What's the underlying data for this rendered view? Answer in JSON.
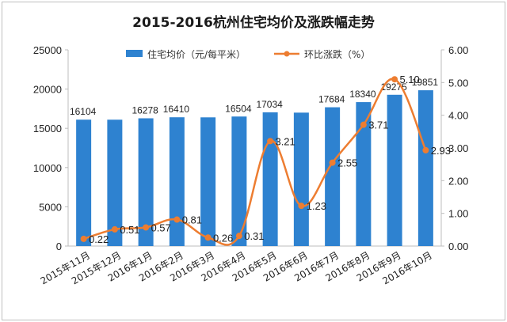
{
  "chart_data": {
    "type": "bar",
    "title": "2015-2016杭州住宅均价及涨跌幅走势",
    "categories": [
      "2015年11月",
      "2015年12月",
      "2016年1月",
      "2016年2月",
      "2016年3月",
      "2016年4月",
      "2016年5月",
      "2016年6月",
      "2016年7月",
      "2016年8月",
      "2016年9月",
      "2016年10月"
    ],
    "series": [
      {
        "name": "住宅均价（元/每平米）",
        "type": "bar",
        "axis": "left",
        "color": "#2e82d0",
        "values": [
          16104,
          16100,
          16278,
          16410,
          16400,
          16504,
          17034,
          17000,
          17684,
          18340,
          19275,
          19851
        ],
        "labels": [
          "16104",
          "",
          "16278",
          "16410",
          "",
          "16504",
          "17034",
          "",
          "17684",
          "18340",
          "19275",
          "19851"
        ]
      },
      {
        "name": "环比涨跌（%）",
        "type": "line",
        "axis": "right",
        "color": "#ed7d31",
        "values": [
          0.22,
          0.51,
          0.57,
          0.81,
          0.26,
          0.31,
          3.21,
          1.23,
          2.55,
          3.71,
          5.1,
          2.93
        ],
        "labels": [
          "0.22",
          "0.51",
          "0.57",
          "0.81",
          "0.26",
          "0.31",
          "3.21",
          "1.23",
          "2.55",
          "3.71",
          "5.10",
          "2.93"
        ]
      }
    ],
    "y_left": {
      "min": 0,
      "max": 25000,
      "ticks": [
        "0",
        "5000",
        "10000",
        "15000",
        "20000",
        "25000"
      ]
    },
    "y_right": {
      "min": 0,
      "max": 6,
      "ticks": [
        "0.00",
        "1.00",
        "2.00",
        "3.00",
        "4.00",
        "5.00",
        "6.00"
      ]
    },
    "legend_position": "top",
    "grid": false
  }
}
